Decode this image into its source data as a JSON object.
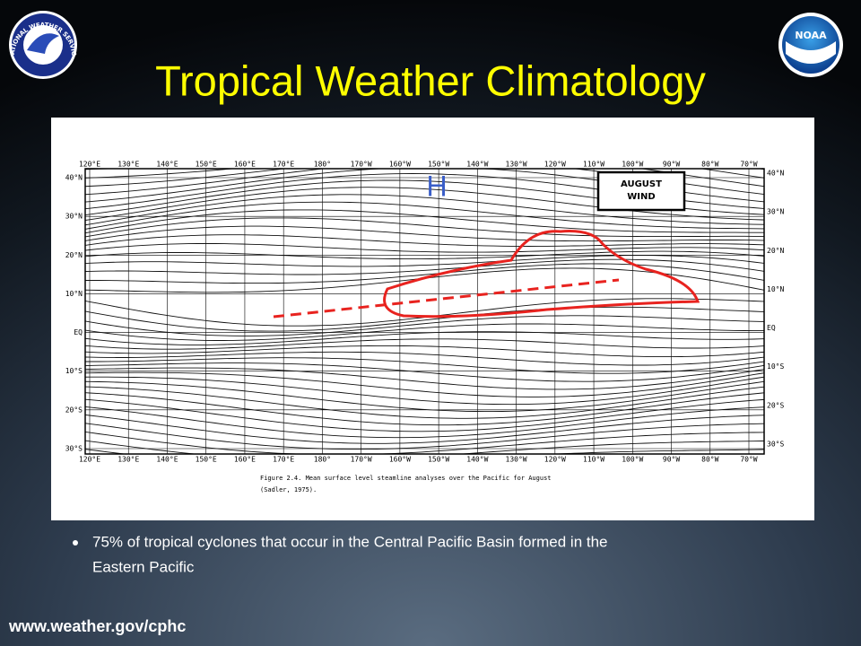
{
  "header": {
    "title": "Tropical Weather Climatology",
    "nws_logo_text": "NATIONAL WEATHER SERVICE",
    "noaa_logo_text": "NOAA"
  },
  "map": {
    "top_longitudes": [
      "120°E",
      "130°E",
      "140°E",
      "150°E",
      "160°E",
      "170°E",
      "180°",
      "170°W",
      "160°W",
      "150°W",
      "140°W",
      "130°W",
      "120°W",
      "110°W",
      "100°W",
      "90°W",
      "80°W",
      "70°W"
    ],
    "bottom_longitudes": [
      "120°E",
      "130°E",
      "140°E",
      "150°E",
      "160°E",
      "170°E",
      "180°",
      "170°W",
      "160°W",
      "150°W",
      "140°W",
      "130°W",
      "120°W",
      "110°W",
      "100°W",
      "90°W",
      "80°W",
      "70°W"
    ],
    "left_latitudes": [
      "40°N",
      "30°N",
      "20°N",
      "10°N",
      "EQ",
      "10°S",
      "20°S",
      "30°S"
    ],
    "right_latitudes": [
      "40°N",
      "30°N",
      "20°N",
      "10°N",
      "EQ",
      "10°S",
      "20°S",
      "30°S"
    ],
    "legend_box": [
      "AUGUST",
      "WIND"
    ],
    "high_marker": "H",
    "caption": [
      "Figure 2.4. Mean surface level steamline analyses over the Pacific for August",
      "(Sadler, 1975)."
    ]
  },
  "bullets": [
    "75% of tropical cyclones that occur in the Central Pacific Basin formed in the",
    "Eastern Pacific"
  ],
  "footer": "www.weather.gov/cphc"
}
